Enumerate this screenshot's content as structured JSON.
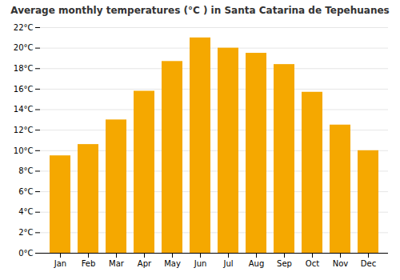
{
  "chart_data": {
    "type": "bar",
    "title": "Average monthly temperatures (°C ) in Santa Catarina de Tepehuanes",
    "categories": [
      "Jan",
      "Feb",
      "Mar",
      "Apr",
      "May",
      "Jun",
      "Jul",
      "Aug",
      "Sep",
      "Oct",
      "Nov",
      "Dec"
    ],
    "values": [
      9.5,
      10.6,
      13.0,
      15.8,
      18.7,
      21.0,
      20.0,
      19.5,
      18.4,
      15.7,
      12.5,
      10.0
    ],
    "color": "#F5A800",
    "ylim": [
      0,
      22
    ],
    "yticks": [
      {
        "value": 0,
        "label": "0°C"
      },
      {
        "value": 2,
        "label": "2°C"
      },
      {
        "value": 4,
        "label": "4°C"
      },
      {
        "value": 6,
        "label": "6°C"
      },
      {
        "value": 8,
        "label": "8°C"
      },
      {
        "value": 10,
        "label": "10°C"
      },
      {
        "value": 12,
        "label": "12°C"
      },
      {
        "value": 14,
        "label": "14°C"
      },
      {
        "value": 16,
        "label": "16°C"
      },
      {
        "value": 18,
        "label": "18°C"
      },
      {
        "value": 20,
        "label": "20°C"
      },
      {
        "value": 22,
        "label": "22°C"
      }
    ],
    "grid": true
  }
}
